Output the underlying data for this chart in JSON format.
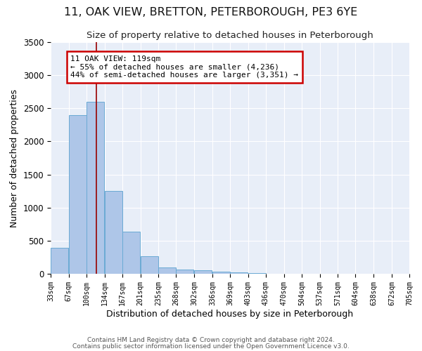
{
  "title": "11, OAK VIEW, BRETTON, PETERBOROUGH, PE3 6YE",
  "subtitle": "Size of property relative to detached houses in Peterborough",
  "xlabel": "Distribution of detached houses by size in Peterborough",
  "ylabel": "Number of detached properties",
  "bar_left_edges": [
    33,
    67,
    100,
    134,
    167,
    201,
    235,
    268,
    302,
    336,
    369,
    403,
    436,
    470,
    504,
    537,
    571,
    604,
    638,
    672
  ],
  "bar_heights": [
    390,
    2400,
    2600,
    1250,
    640,
    260,
    100,
    60,
    55,
    35,
    20,
    10,
    0,
    0,
    0,
    0,
    0,
    0,
    0,
    0
  ],
  "bin_width": 33,
  "bar_color": "#aec6e8",
  "bar_edge_color": "#6aaad4",
  "property_size": 119,
  "red_line_color": "#990000",
  "annotation_text": "11 OAK VIEW: 119sqm\n← 55% of detached houses are smaller (4,236)\n44% of semi-detached houses are larger (3,351) →",
  "annotation_box_color": "#ffffff",
  "annotation_box_edge": "#cc0000",
  "tick_labels": [
    "33sqm",
    "67sqm",
    "100sqm",
    "134sqm",
    "167sqm",
    "201sqm",
    "235sqm",
    "268sqm",
    "302sqm",
    "336sqm",
    "369sqm",
    "403sqm",
    "436sqm",
    "470sqm",
    "504sqm",
    "537sqm",
    "571sqm",
    "604sqm",
    "638sqm",
    "672sqm",
    "705sqm"
  ],
  "ylim": [
    0,
    3500
  ],
  "yticks": [
    0,
    500,
    1000,
    1500,
    2000,
    2500,
    3000,
    3500
  ],
  "plot_bg_color": "#e8eef8",
  "footer_line1": "Contains HM Land Registry data © Crown copyright and database right 2024.",
  "footer_line2": "Contains public sector information licensed under the Open Government Licence v3.0.",
  "title_fontsize": 11.5,
  "subtitle_fontsize": 9.5,
  "xlabel_fontsize": 9,
  "ylabel_fontsize": 9
}
